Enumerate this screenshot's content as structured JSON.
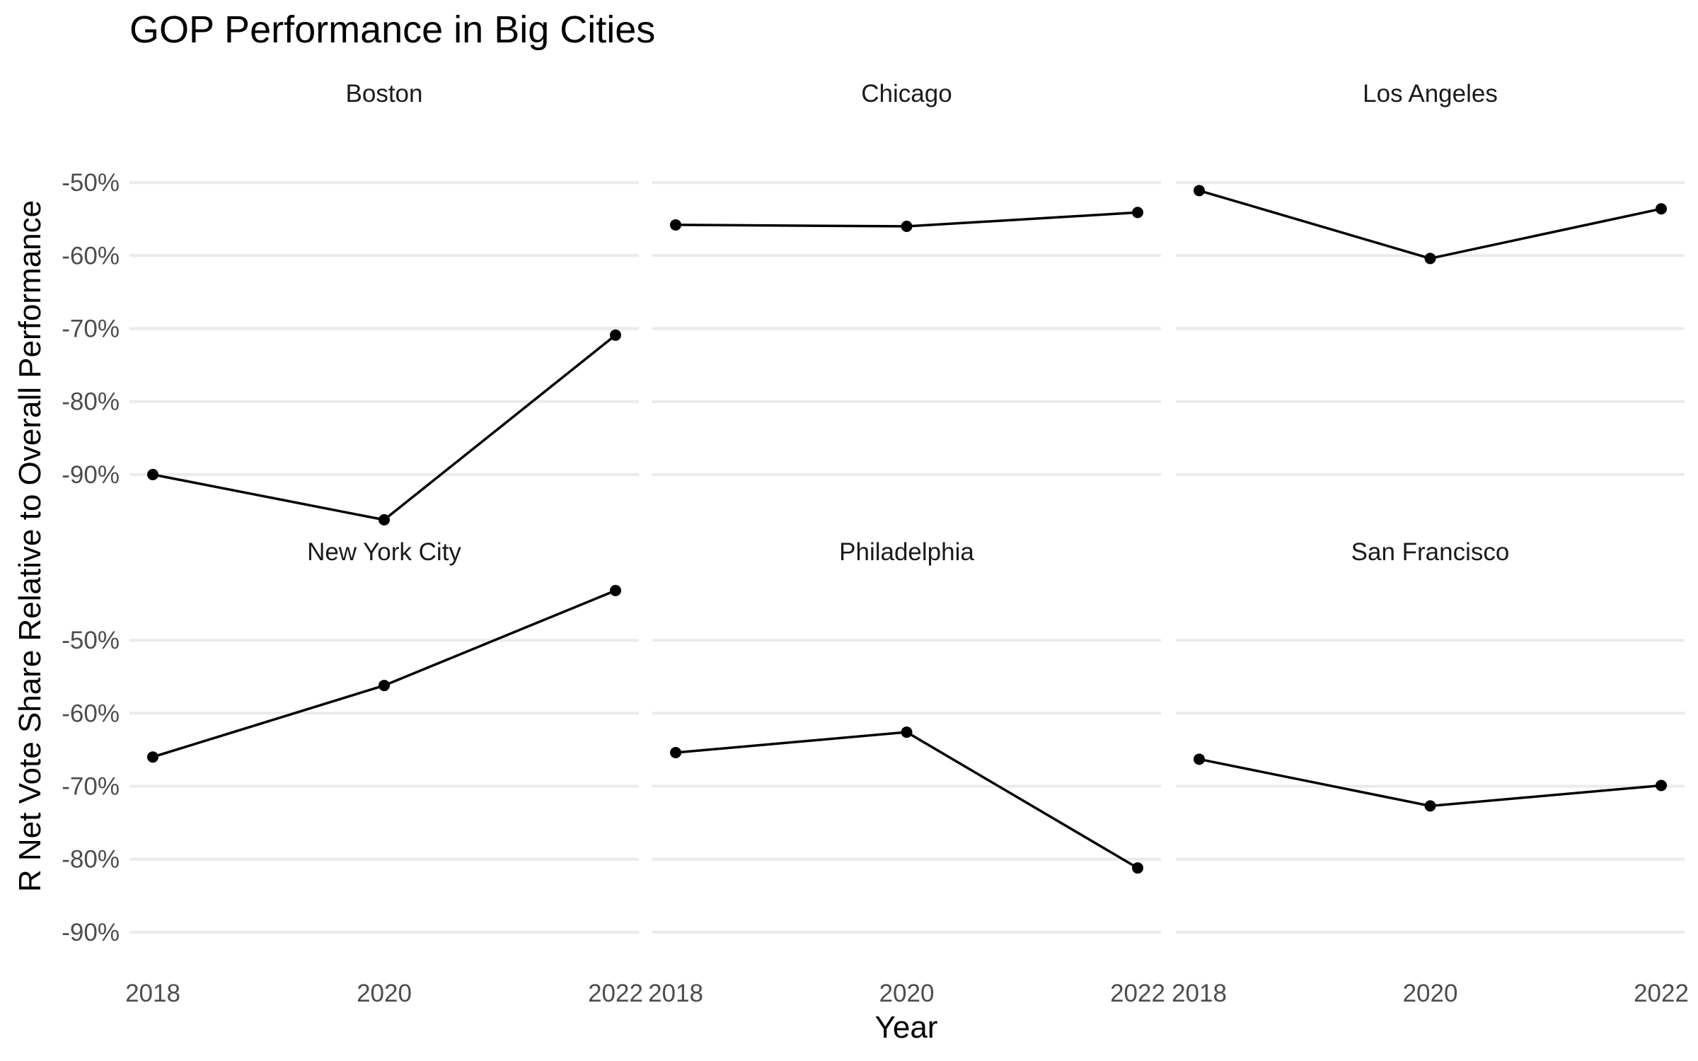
{
  "chart_data": {
    "type": "line",
    "title": "GOP Performance in Big Cities",
    "xlabel": "Year",
    "ylabel": "R Net Vote Share Relative to Overall Performance",
    "x_ticks": [
      2018,
      2020,
      2022
    ],
    "y_ticks": [
      -50,
      -60,
      -70,
      -80,
      -90
    ],
    "y_tick_labels": [
      "-50%",
      "-60%",
      "-70%",
      "-80%",
      "-90%"
    ],
    "ylim": [
      -96.5,
      -43.5
    ],
    "xlim": [
      2018,
      2022
    ],
    "grid": "horizontal",
    "facets": [
      {
        "name": "Boston",
        "x": [
          2018,
          2020,
          2022
        ],
        "values": [
          -90.0,
          -96.2,
          -70.9
        ]
      },
      {
        "name": "Chicago",
        "x": [
          2018,
          2020,
          2022
        ],
        "values": [
          -55.8,
          -56.0,
          -54.1
        ]
      },
      {
        "name": "Los Angeles",
        "x": [
          2018,
          2020,
          2022
        ],
        "values": [
          -51.1,
          -60.4,
          -53.6
        ]
      },
      {
        "name": "New York City",
        "x": [
          2018,
          2020,
          2022
        ],
        "values": [
          -66.0,
          -56.2,
          -43.2
        ]
      },
      {
        "name": "Philadelphia",
        "x": [
          2018,
          2020,
          2022
        ],
        "values": [
          -65.4,
          -62.6,
          -81.2
        ]
      },
      {
        "name": "San Francisco",
        "x": [
          2018,
          2020,
          2022
        ],
        "values": [
          -66.3,
          -72.7,
          -69.9
        ]
      }
    ],
    "colors": {
      "line": "#000000",
      "point": "#000000",
      "grid": "#ebebeb",
      "background": "#ffffff"
    }
  }
}
